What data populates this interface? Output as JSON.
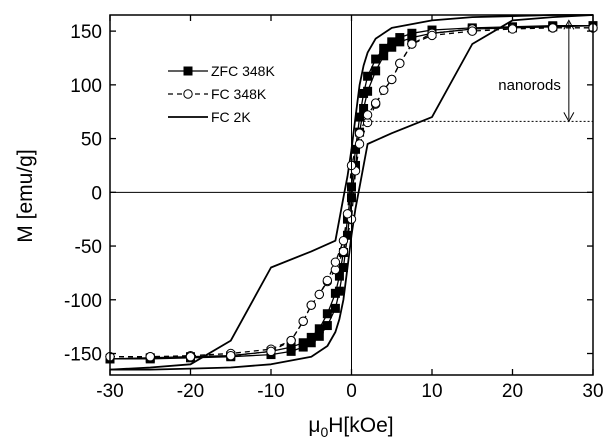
{
  "chart_data": {
    "type": "line",
    "title": "",
    "xlabel_prefix": "μ",
    "xlabel_sub": "0",
    "xlabel_main": "H[kOe]",
    "ylabel": "M [emu/g]",
    "xlim": [
      -30,
      30
    ],
    "ylim": [
      -170,
      165
    ],
    "xticks": [
      -30,
      -20,
      -10,
      0,
      10,
      20,
      30
    ],
    "yticks": [
      -150,
      -100,
      -50,
      0,
      50,
      100,
      150
    ],
    "grid": false,
    "legend_position": "top-left",
    "annotation": {
      "text": "nanorods",
      "x_data": 27,
      "y_top": 160,
      "y_bottom": 66
    },
    "series": [
      {
        "name": "ZFC 348K",
        "marker": "square-filled",
        "dash": "solid",
        "x": [
          -30,
          -25,
          -20,
          -15,
          -10,
          -7.5,
          -6,
          -5,
          -4,
          -3,
          -2,
          -1.5,
          -1,
          -0.5,
          0,
          0.5,
          1,
          1.5,
          2,
          3,
          4,
          5,
          6,
          7.5,
          10,
          15,
          20,
          25,
          30
        ],
        "y": [
          -155,
          -154,
          -153,
          -152,
          -148,
          -144,
          -140,
          -135,
          -127,
          -113,
          -94,
          -78,
          -56,
          -25,
          5,
          40,
          70,
          92,
          108,
          124,
          134,
          140,
          144,
          148,
          151,
          153,
          154,
          155,
          155
        ]
      },
      {
        "name": "FC 348K",
        "marker": "circle-open",
        "dash": "dashed",
        "x": [
          -30,
          -25,
          -20,
          -15,
          -10,
          -7.5,
          -6,
          -5,
          -4,
          -3,
          -2,
          -1,
          0,
          0.5,
          1,
          2,
          3,
          4,
          5,
          6,
          7.5,
          10,
          15,
          20,
          25,
          30
        ],
        "y": [
          -153,
          -153,
          -152,
          -150,
          -146,
          -138,
          -120,
          -105,
          -95,
          -83,
          -72,
          -55,
          -25,
          20,
          45,
          65,
          82,
          95,
          105,
          120,
          138,
          148,
          152,
          153,
          153,
          153
        ]
      },
      {
        "name": "FC 2K",
        "marker": "none",
        "dash": "solid",
        "descending": {
          "x": [
            30,
            25,
            20,
            15,
            10,
            5,
            3,
            2,
            1.5,
            1,
            0.5,
            0,
            -0.5,
            -1,
            -2,
            -5,
            -10,
            -15,
            -20,
            -25,
            -30
          ],
          "y": [
            165,
            165,
            164,
            163,
            160,
            153,
            143,
            130,
            118,
            100,
            70,
            40,
            15,
            -5,
            -45,
            -55,
            -70,
            -138,
            -160,
            -163,
            -165
          ]
        },
        "ascending": {
          "x": [
            -30,
            -25,
            -20,
            -15,
            -10,
            -5,
            -3,
            -2,
            -1.5,
            -1,
            -0.5,
            0,
            0.5,
            1,
            2,
            5,
            10,
            15,
            20,
            25,
            30
          ],
          "y": [
            -165,
            -165,
            -164,
            -163,
            -160,
            -153,
            -143,
            -130,
            -118,
            -100,
            -70,
            -40,
            -15,
            5,
            45,
            55,
            70,
            138,
            160,
            163,
            165
          ]
        }
      }
    ]
  }
}
